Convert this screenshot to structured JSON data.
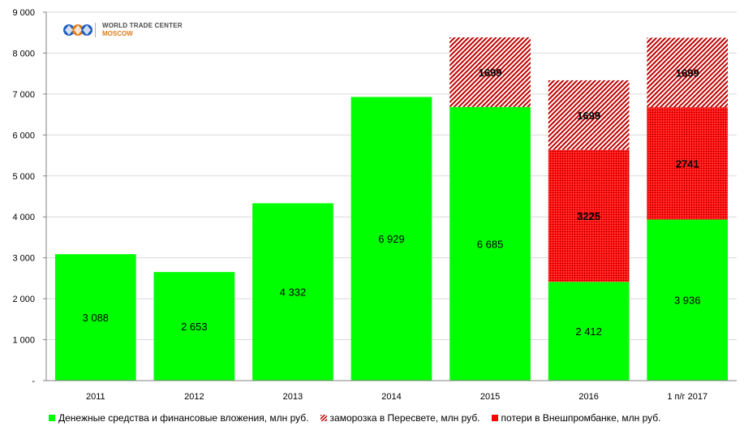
{
  "logo": {
    "line1": "WORLD TRADE CENTER",
    "line2": "MOSCOW"
  },
  "colors": {
    "cash": "#00ff00",
    "frozen": "#c00000",
    "loss": "#ff0000",
    "grid": "#d9d9d9",
    "axis": "#808080"
  },
  "chart_data": {
    "type": "bar",
    "stacked": true,
    "categories": [
      "2011",
      "2012",
      "2013",
      "2014",
      "2015",
      "2016",
      "1 п/г 2017"
    ],
    "ylim": [
      0,
      9000
    ],
    "yticks": [
      {
        "value": 0,
        "label": "-"
      },
      {
        "value": 1000,
        "label": "1 000"
      },
      {
        "value": 2000,
        "label": "2 000"
      },
      {
        "value": 3000,
        "label": "3 000"
      },
      {
        "value": 4000,
        "label": "4 000"
      },
      {
        "value": 5000,
        "label": "5 000"
      },
      {
        "value": 6000,
        "label": "6 000"
      },
      {
        "value": 7000,
        "label": "7 000"
      },
      {
        "value": 8000,
        "label": "8 000"
      },
      {
        "value": 9000,
        "label": "9 000"
      }
    ],
    "grid": true,
    "legend_position": "bottom",
    "series": [
      {
        "key": "cash",
        "name": "Денежные средства и финансовые вложения, млн руб.",
        "values": [
          3088,
          2653,
          4332,
          6929,
          6685,
          2412,
          3936
        ],
        "labels": [
          "3 088",
          "2 653",
          "4 332",
          "6 929",
          "6 685",
          "2 412",
          "3 936"
        ],
        "pattern": "solid"
      },
      {
        "key": "loss",
        "name": "потери в Внешпромбанке, млн руб.",
        "values": [
          0,
          0,
          0,
          0,
          0,
          3225,
          2741
        ],
        "labels": [
          "",
          "",
          "",
          "",
          "",
          "3225",
          "2741"
        ],
        "pattern": "dots"
      },
      {
        "key": "frozen",
        "name": "заморозка в Пересвете, млн руб.",
        "values": [
          0,
          0,
          0,
          0,
          1699,
          1699,
          1699
        ],
        "labels": [
          "",
          "",
          "",
          "",
          "1699",
          "1699",
          "1699"
        ],
        "pattern": "hatch"
      }
    ],
    "legend_order": [
      "cash",
      "frozen",
      "loss"
    ]
  }
}
